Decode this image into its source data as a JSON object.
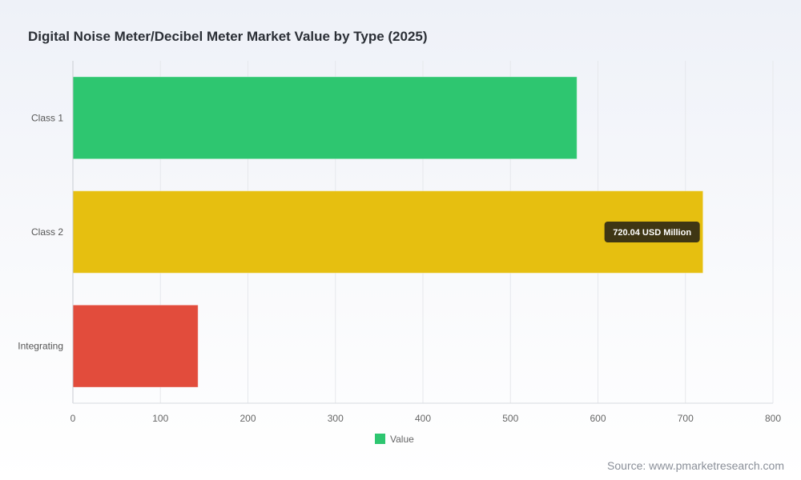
{
  "source": "Source: www.pmarketresearch.com",
  "chart_data": {
    "type": "bar",
    "orientation": "horizontal",
    "title": "Digital Noise Meter/Decibel Meter Market Value by Type (2025)",
    "categories": [
      "Class 1",
      "Class 2",
      "Integrating"
    ],
    "values": [
      576,
      720.04,
      143
    ],
    "colors": [
      "#2ec670",
      "#e6bf10",
      "#e24c3c"
    ],
    "xlim": [
      0,
      800
    ],
    "xticks": [
      0,
      100,
      200,
      300,
      400,
      500,
      600,
      700,
      800
    ],
    "grid": true,
    "legend": {
      "label": "Value",
      "color": "#2ec670",
      "placement": "bottom-center"
    },
    "tooltip": {
      "category": "Class 2",
      "text": "720.04 USD Million"
    }
  }
}
